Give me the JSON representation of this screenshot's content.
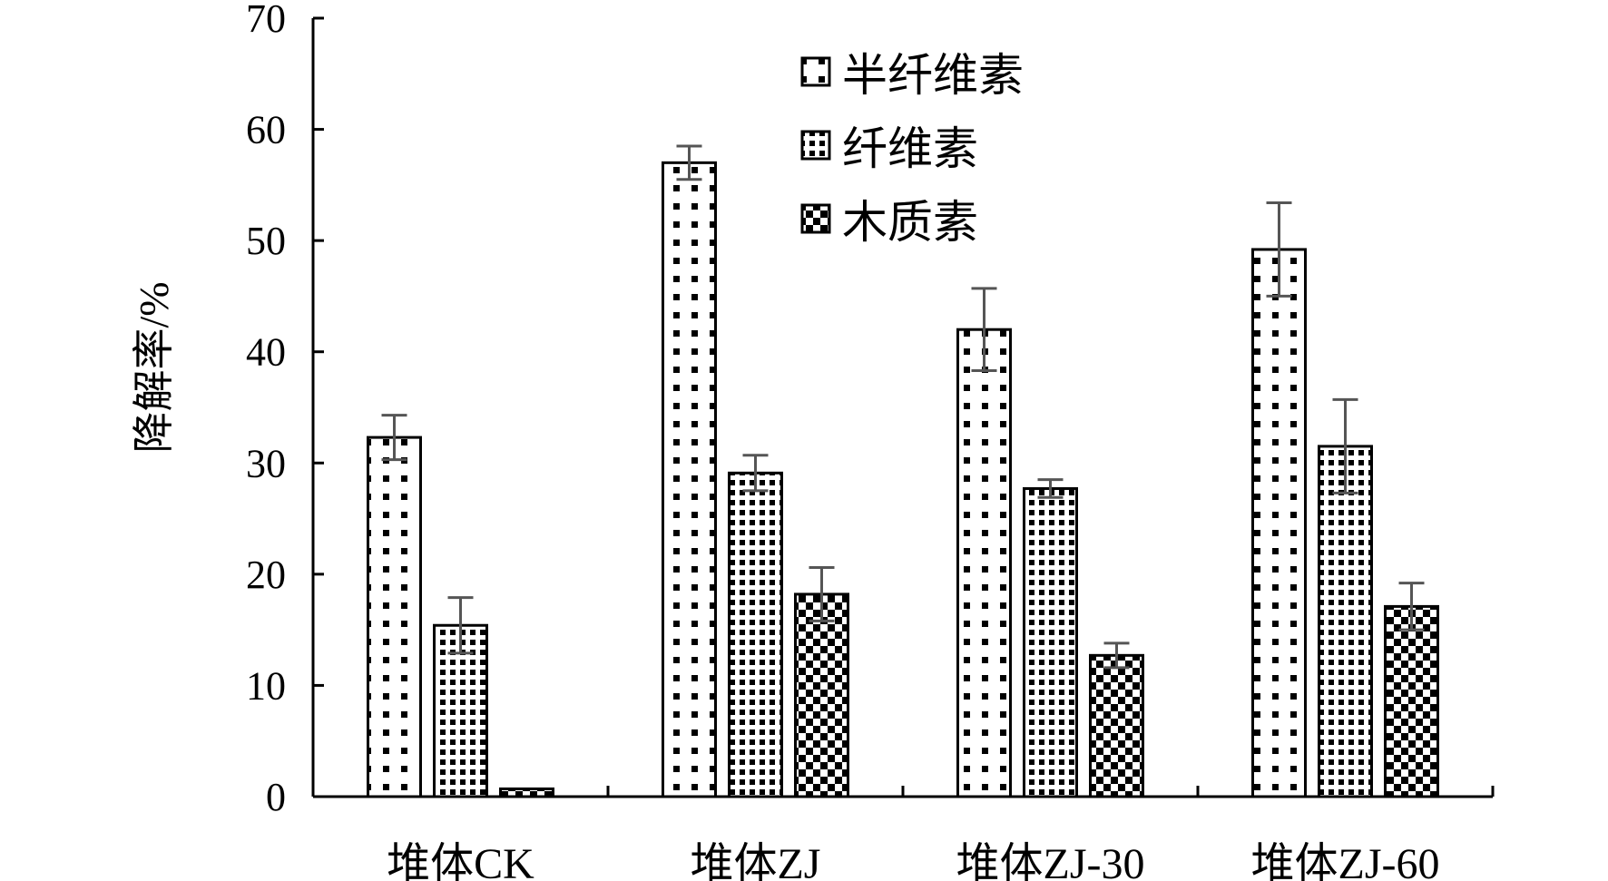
{
  "chart_data": {
    "type": "bar",
    "categories": [
      "堆体CK",
      "堆体ZJ",
      "堆体ZJ-30",
      "堆体ZJ-60"
    ],
    "series": [
      {
        "name": "半纤维素",
        "values": [
          32.3,
          57.0,
          42.0,
          49.2
        ],
        "errors": [
          2.0,
          1.5,
          3.7,
          4.2
        ],
        "pattern": "sparse-dots"
      },
      {
        "name": "纤维素",
        "values": [
          15.4,
          29.1,
          27.7,
          31.5
        ],
        "errors": [
          2.5,
          1.6,
          0.8,
          4.2
        ],
        "pattern": "dense-dots"
      },
      {
        "name": "木质素",
        "values": [
          0.7,
          18.2,
          12.7,
          17.1
        ],
        "errors": [
          0.0,
          2.4,
          1.1,
          2.1
        ],
        "pattern": "checker"
      }
    ],
    "xlabel": "",
    "ylabel": "降解率/%",
    "ylim": [
      0,
      70
    ],
    "yticks": [
      0,
      10,
      20,
      30,
      40,
      50,
      60,
      70
    ],
    "legend_position": "top-center",
    "grid": false,
    "colors": {
      "bar_fill": "#ffffff",
      "ink": "#000000",
      "error_bar": "#555555"
    }
  }
}
